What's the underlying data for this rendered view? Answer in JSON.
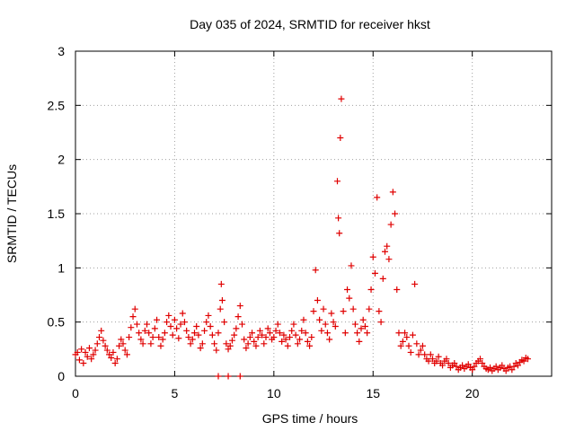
{
  "chart_data": {
    "type": "scatter",
    "title": "Day 035 of 2024, SRMTID for receiver hkst",
    "xlabel": "GPS time / hours",
    "ylabel": "SRMTID / TECUs",
    "xlim": [
      0,
      24
    ],
    "ylim": [
      0,
      3
    ],
    "xticks": [
      0,
      5,
      10,
      15,
      20
    ],
    "xtick_labels": [
      "0",
      "5",
      "10",
      "15",
      "20"
    ],
    "yticks": [
      0,
      0.5,
      1,
      1.5,
      2,
      2.5,
      3
    ],
    "ytick_labels": [
      "0",
      "0.5",
      "1",
      "1.5",
      "2",
      "2.5",
      "3"
    ],
    "grid": true,
    "marker": "+",
    "color": "#e00000",
    "series": [
      {
        "name": "SRMTID",
        "points": [
          [
            0.0,
            0.2
          ],
          [
            0.1,
            0.22
          ],
          [
            0.2,
            0.15
          ],
          [
            0.3,
            0.25
          ],
          [
            0.4,
            0.12
          ],
          [
            0.5,
            0.22
          ],
          [
            0.6,
            0.18
          ],
          [
            0.7,
            0.26
          ],
          [
            0.8,
            0.16
          ],
          [
            0.9,
            0.2
          ],
          [
            1.0,
            0.24
          ],
          [
            1.1,
            0.3
          ],
          [
            1.2,
            0.36
          ],
          [
            1.3,
            0.42
          ],
          [
            1.4,
            0.33
          ],
          [
            1.5,
            0.28
          ],
          [
            1.6,
            0.24
          ],
          [
            1.7,
            0.2
          ],
          [
            1.8,
            0.17
          ],
          [
            1.9,
            0.22
          ],
          [
            2.0,
            0.12
          ],
          [
            2.1,
            0.16
          ],
          [
            2.2,
            0.28
          ],
          [
            2.3,
            0.34
          ],
          [
            2.4,
            0.3
          ],
          [
            2.5,
            0.24
          ],
          [
            2.6,
            0.2
          ],
          [
            2.7,
            0.36
          ],
          [
            2.8,
            0.45
          ],
          [
            2.9,
            0.55
          ],
          [
            3.0,
            0.62
          ],
          [
            3.1,
            0.48
          ],
          [
            3.2,
            0.4
          ],
          [
            3.3,
            0.34
          ],
          [
            3.4,
            0.3
          ],
          [
            3.5,
            0.42
          ],
          [
            3.6,
            0.48
          ],
          [
            3.7,
            0.4
          ],
          [
            3.8,
            0.3
          ],
          [
            3.9,
            0.36
          ],
          [
            4.0,
            0.44
          ],
          [
            4.1,
            0.52
          ],
          [
            4.2,
            0.36
          ],
          [
            4.3,
            0.28
          ],
          [
            4.4,
            0.34
          ],
          [
            4.5,
            0.4
          ],
          [
            4.6,
            0.5
          ],
          [
            4.7,
            0.56
          ],
          [
            4.8,
            0.46
          ],
          [
            4.9,
            0.38
          ],
          [
            5.0,
            0.52
          ],
          [
            5.1,
            0.44
          ],
          [
            5.2,
            0.35
          ],
          [
            5.3,
            0.48
          ],
          [
            5.4,
            0.58
          ],
          [
            5.5,
            0.5
          ],
          [
            5.6,
            0.42
          ],
          [
            5.7,
            0.36
          ],
          [
            5.8,
            0.3
          ],
          [
            5.9,
            0.34
          ],
          [
            6.0,
            0.4
          ],
          [
            6.1,
            0.46
          ],
          [
            6.2,
            0.38
          ],
          [
            6.3,
            0.26
          ],
          [
            6.4,
            0.3
          ],
          [
            6.5,
            0.42
          ],
          [
            6.6,
            0.5
          ],
          [
            6.7,
            0.56
          ],
          [
            6.8,
            0.46
          ],
          [
            6.9,
            0.38
          ],
          [
            7.0,
            0.3
          ],
          [
            7.1,
            0.24
          ],
          [
            7.2,
            0.4
          ],
          [
            7.3,
            0.62
          ],
          [
            7.35,
            0.85
          ],
          [
            7.4,
            0.7
          ],
          [
            7.5,
            0.5
          ],
          [
            7.6,
            0.3
          ],
          [
            7.7,
            0.25
          ],
          [
            7.8,
            0.28
          ],
          [
            7.9,
            0.33
          ],
          [
            8.0,
            0.38
          ],
          [
            8.1,
            0.44
          ],
          [
            8.2,
            0.55
          ],
          [
            8.3,
            0.65
          ],
          [
            8.4,
            0.48
          ],
          [
            8.5,
            0.34
          ],
          [
            8.6,
            0.26
          ],
          [
            8.7,
            0.3
          ],
          [
            8.8,
            0.36
          ],
          [
            8.9,
            0.4
          ],
          [
            9.0,
            0.32
          ],
          [
            9.1,
            0.28
          ],
          [
            9.2,
            0.36
          ],
          [
            9.3,
            0.42
          ],
          [
            9.4,
            0.38
          ],
          [
            9.5,
            0.3
          ],
          [
            9.6,
            0.36
          ],
          [
            9.7,
            0.44
          ],
          [
            9.8,
            0.4
          ],
          [
            9.9,
            0.34
          ],
          [
            10.0,
            0.36
          ],
          [
            10.1,
            0.42
          ],
          [
            10.2,
            0.48
          ],
          [
            10.3,
            0.4
          ],
          [
            10.4,
            0.32
          ],
          [
            10.5,
            0.38
          ],
          [
            10.6,
            0.34
          ],
          [
            10.7,
            0.28
          ],
          [
            10.8,
            0.36
          ],
          [
            10.9,
            0.42
          ],
          [
            11.0,
            0.48
          ],
          [
            11.1,
            0.38
          ],
          [
            11.2,
            0.3
          ],
          [
            11.3,
            0.34
          ],
          [
            11.4,
            0.42
          ],
          [
            11.5,
            0.52
          ],
          [
            11.6,
            0.4
          ],
          [
            11.7,
            0.32
          ],
          [
            11.8,
            0.28
          ],
          [
            11.9,
            0.36
          ],
          [
            12.0,
            0.6
          ],
          [
            12.1,
            0.98
          ],
          [
            12.2,
            0.7
          ],
          [
            12.3,
            0.52
          ],
          [
            12.4,
            0.42
          ],
          [
            12.5,
            0.62
          ],
          [
            12.6,
            0.48
          ],
          [
            12.7,
            0.4
          ],
          [
            12.8,
            0.34
          ],
          [
            12.9,
            0.58
          ],
          [
            13.0,
            0.5
          ],
          [
            13.1,
            0.46
          ],
          [
            13.2,
            1.8
          ],
          [
            13.25,
            1.46
          ],
          [
            13.3,
            1.32
          ],
          [
            13.35,
            2.2
          ],
          [
            13.4,
            2.56
          ],
          [
            13.5,
            0.6
          ],
          [
            13.6,
            0.4
          ],
          [
            13.7,
            0.8
          ],
          [
            13.8,
            0.72
          ],
          [
            13.9,
            1.02
          ],
          [
            14.0,
            0.62
          ],
          [
            14.1,
            0.48
          ],
          [
            14.2,
            0.4
          ],
          [
            14.3,
            0.32
          ],
          [
            14.4,
            0.44
          ],
          [
            14.5,
            0.52
          ],
          [
            14.6,
            0.46
          ],
          [
            14.7,
            0.4
          ],
          [
            14.8,
            0.62
          ],
          [
            14.9,
            0.8
          ],
          [
            15.0,
            1.1
          ],
          [
            15.1,
            0.95
          ],
          [
            15.2,
            1.65
          ],
          [
            15.3,
            0.6
          ],
          [
            15.4,
            0.5
          ],
          [
            15.5,
            0.9
          ],
          [
            15.6,
            1.15
          ],
          [
            15.7,
            1.2
          ],
          [
            15.8,
            1.08
          ],
          [
            15.9,
            1.4
          ],
          [
            16.0,
            1.7
          ],
          [
            16.1,
            1.5
          ],
          [
            16.2,
            0.8
          ],
          [
            16.3,
            0.4
          ],
          [
            16.4,
            0.28
          ],
          [
            16.5,
            0.32
          ],
          [
            16.6,
            0.4
          ],
          [
            16.7,
            0.36
          ],
          [
            16.8,
            0.28
          ],
          [
            16.9,
            0.22
          ],
          [
            17.0,
            0.38
          ],
          [
            17.1,
            0.85
          ],
          [
            17.2,
            0.3
          ],
          [
            17.3,
            0.2
          ],
          [
            17.4,
            0.24
          ],
          [
            17.5,
            0.28
          ],
          [
            17.6,
            0.2
          ],
          [
            17.7,
            0.16
          ],
          [
            17.8,
            0.14
          ],
          [
            17.9,
            0.2
          ],
          [
            18.0,
            0.16
          ],
          [
            18.1,
            0.12
          ],
          [
            18.2,
            0.14
          ],
          [
            18.3,
            0.18
          ],
          [
            18.4,
            0.12
          ],
          [
            18.5,
            0.1
          ],
          [
            18.6,
            0.14
          ],
          [
            18.7,
            0.16
          ],
          [
            18.8,
            0.12
          ],
          [
            18.9,
            0.08
          ],
          [
            19.0,
            0.1
          ],
          [
            19.1,
            0.12
          ],
          [
            19.2,
            0.09
          ],
          [
            19.3,
            0.06
          ],
          [
            19.4,
            0.08
          ],
          [
            19.5,
            0.1
          ],
          [
            19.6,
            0.07
          ],
          [
            19.7,
            0.09
          ],
          [
            19.8,
            0.11
          ],
          [
            19.9,
            0.08
          ],
          [
            20.0,
            0.06
          ],
          [
            20.1,
            0.09
          ],
          [
            20.2,
            0.12
          ],
          [
            20.3,
            0.14
          ],
          [
            20.4,
            0.16
          ],
          [
            20.5,
            0.12
          ],
          [
            20.6,
            0.09
          ],
          [
            20.7,
            0.07
          ],
          [
            20.8,
            0.06
          ],
          [
            20.9,
            0.08
          ],
          [
            21.0,
            0.05
          ],
          [
            21.1,
            0.07
          ],
          [
            21.2,
            0.09
          ],
          [
            21.3,
            0.06
          ],
          [
            21.4,
            0.08
          ],
          [
            21.5,
            0.1
          ],
          [
            21.6,
            0.07
          ],
          [
            21.7,
            0.05
          ],
          [
            21.8,
            0.08
          ],
          [
            21.9,
            0.09
          ],
          [
            22.0,
            0.06
          ],
          [
            22.1,
            0.09
          ],
          [
            22.2,
            0.12
          ],
          [
            22.3,
            0.1
          ],
          [
            22.4,
            0.13
          ],
          [
            22.5,
            0.15
          ],
          [
            22.6,
            0.14
          ],
          [
            22.7,
            0.17
          ],
          [
            22.8,
            0.16
          ],
          [
            7.2,
            0.0
          ],
          [
            7.7,
            0.0
          ],
          [
            8.3,
            0.0
          ]
        ]
      }
    ]
  }
}
